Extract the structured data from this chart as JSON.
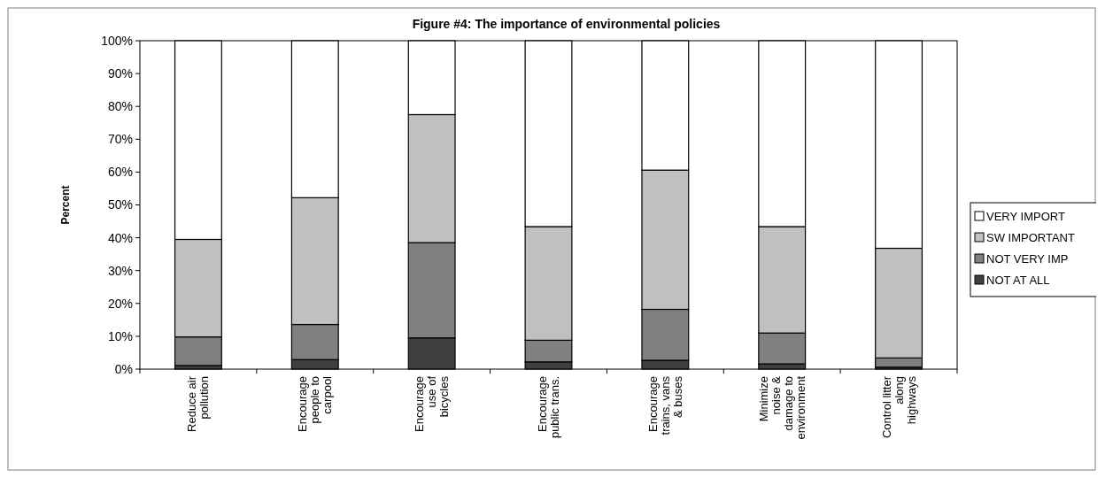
{
  "chart_data": {
    "type": "bar",
    "title": "Figure #4:  The importance of environmental policies",
    "ylabel": "Percent",
    "categories": [
      "Reduce air\npollution",
      "Encourage\npeople to\ncarpool",
      "Encourage\nuse of\nbicycles",
      "Encourage\npublic trans.",
      "Encourage\ntrains, vans\n& buses",
      "Minimize\nnoise &\ndamage to\nenvironment",
      "Control litter\nalong\nhighways"
    ],
    "stacked": true,
    "legend": "right",
    "grid": false,
    "series": [
      {
        "name": "NOT AT ALL",
        "color": "#404040",
        "values": [
          1.1,
          2.9,
          9.5,
          2.2,
          2.7,
          1.6,
          0.6
        ]
      },
      {
        "name": "NOT VERY IMP",
        "color": "#808080",
        "values": [
          8.7,
          10.7,
          29.0,
          6.6,
          15.5,
          9.4,
          2.8
        ]
      },
      {
        "name": "SW IMPORTANT",
        "color": "#c0c0c0",
        "values": [
          29.7,
          38.6,
          39.0,
          34.6,
          42.4,
          32.4,
          33.4
        ]
      },
      {
        "name": "VERY IMPORT",
        "color": "#ffffff",
        "values": [
          60.5,
          47.8,
          22.5,
          56.6,
          39.4,
          56.6,
          63.2
        ]
      }
    ],
    "ylim": [
      0,
      100
    ],
    "yticks": [
      {
        "value": 0,
        "label": "0%"
      },
      {
        "value": 10,
        "label": "10%"
      },
      {
        "value": 20,
        "label": "20%"
      },
      {
        "value": 30,
        "label": "30%"
      },
      {
        "value": 40,
        "label": "40%"
      },
      {
        "value": 50,
        "label": "50%"
      },
      {
        "value": 60,
        "label": "60%"
      },
      {
        "value": 70,
        "label": "70%"
      },
      {
        "value": 80,
        "label": "80%"
      },
      {
        "value": 90,
        "label": "90%"
      },
      {
        "value": 100,
        "label": "100%"
      }
    ]
  }
}
